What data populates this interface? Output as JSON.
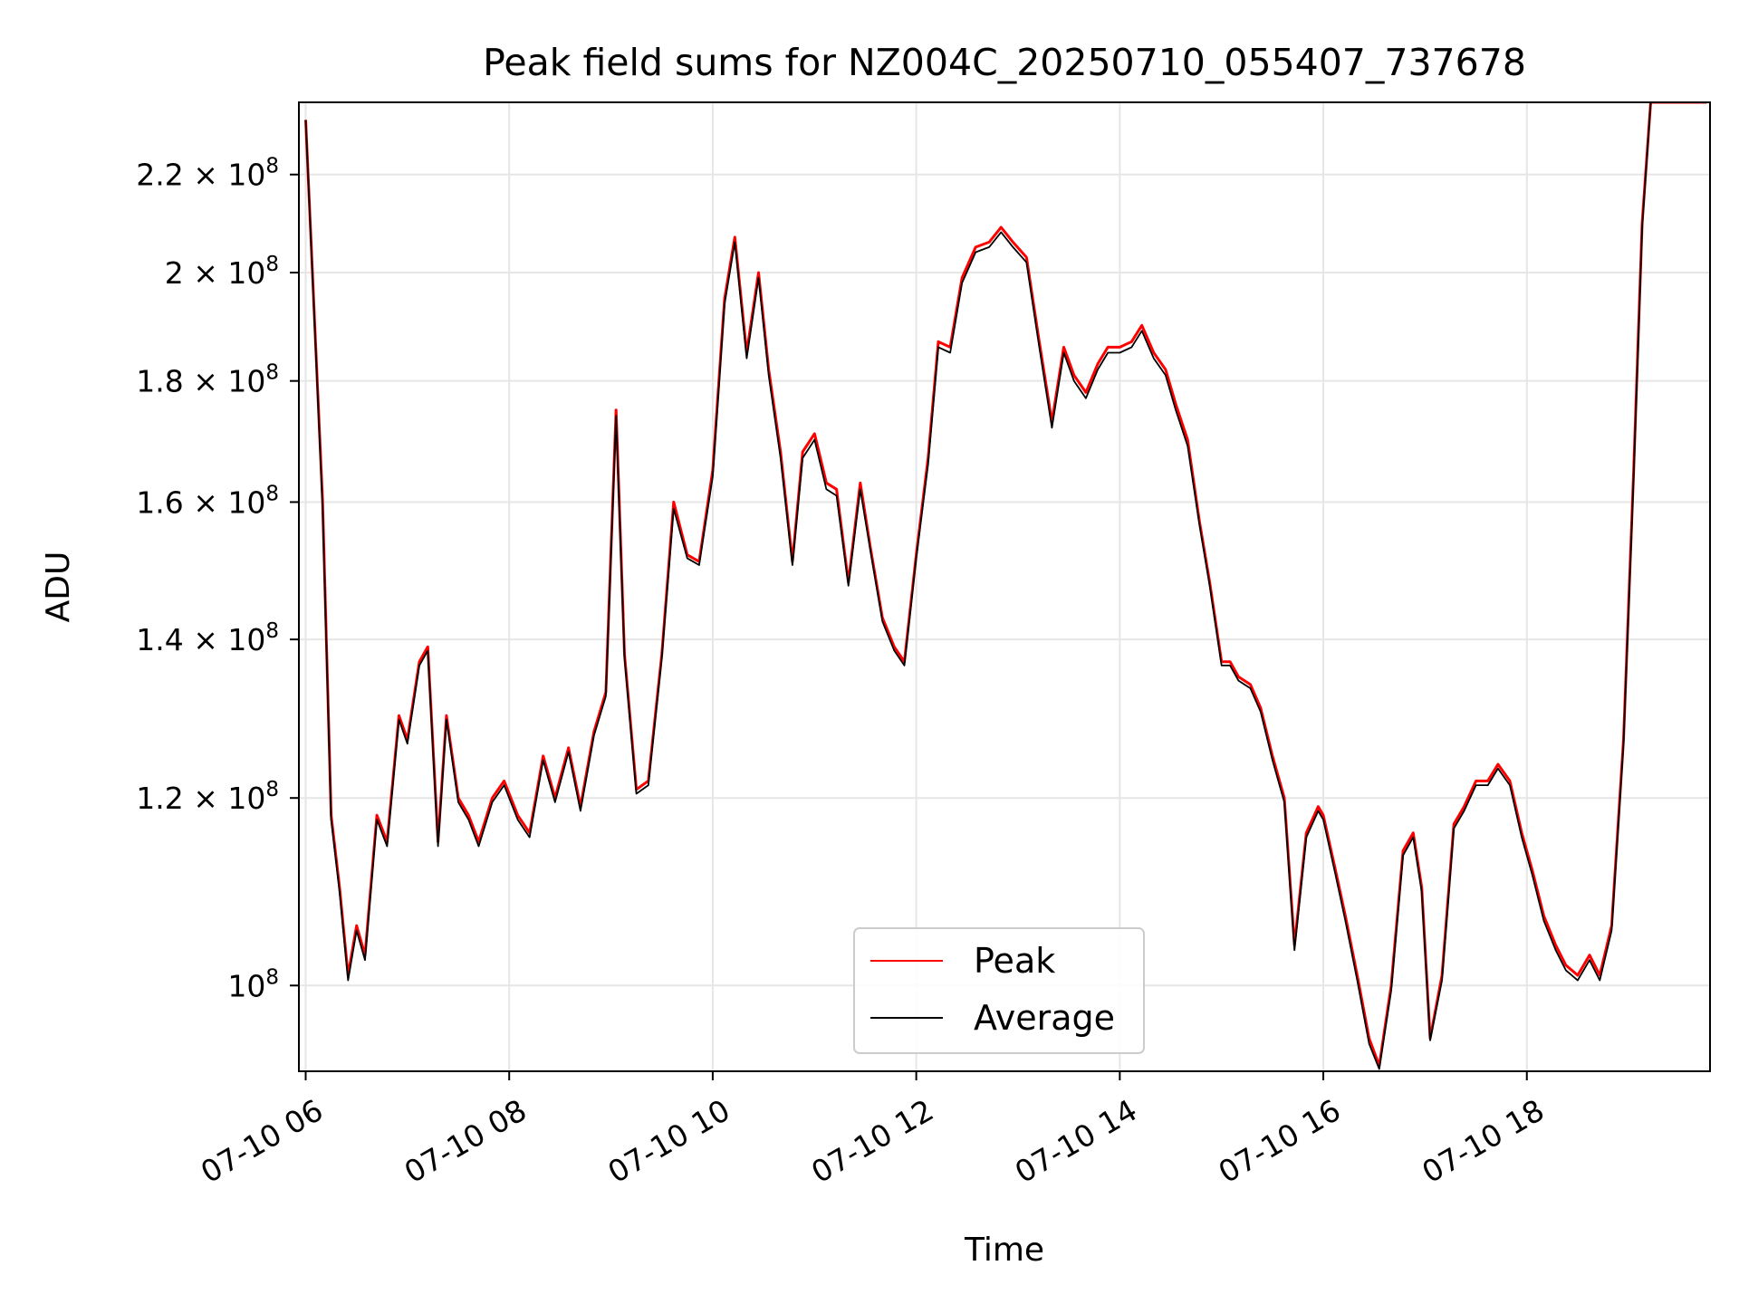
{
  "chart_data": {
    "type": "line",
    "title": "Peak field sums for NZ004C_20250710_055407_737678",
    "xlabel": "Time",
    "ylabel": "ADU",
    "yscale": "log",
    "xlim": [
      "2025-07-10 05:56",
      "2025-07-10 19:48"
    ],
    "ylim": [
      92000000,
      236000000
    ],
    "grid": true,
    "legend_position": "lower center",
    "x_ticks": [
      {
        "value": "2025-07-10 06:00",
        "label": "07-10 06"
      },
      {
        "value": "2025-07-10 08:00",
        "label": "07-10 08"
      },
      {
        "value": "2025-07-10 10:00",
        "label": "07-10 10"
      },
      {
        "value": "2025-07-10 12:00",
        "label": "07-10 12"
      },
      {
        "value": "2025-07-10 14:00",
        "label": "07-10 14"
      },
      {
        "value": "2025-07-10 16:00",
        "label": "07-10 16"
      },
      {
        "value": "2025-07-10 18:00",
        "label": "07-10 18"
      }
    ],
    "y_ticks": [
      {
        "value": 100000000,
        "label": "10^8"
      },
      {
        "value": 120000000,
        "label": "1.2 × 10^8"
      },
      {
        "value": 140000000,
        "label": "1.4 × 10^8"
      },
      {
        "value": 160000000,
        "label": "1.6 × 10^8"
      },
      {
        "value": 180000000,
        "label": "1.8 × 10^8"
      },
      {
        "value": 200000000,
        "label": "2 × 10^8"
      },
      {
        "value": 220000000,
        "label": "2.2 × 10^8"
      }
    ],
    "series": [
      {
        "name": "Peak",
        "color": "#ff0000",
        "x": [
          "2025-07-10 06:00",
          "2025-07-10 06:10",
          "2025-07-10 06:15",
          "2025-07-10 06:20",
          "2025-07-10 06:25",
          "2025-07-10 06:30",
          "2025-07-10 06:35",
          "2025-07-10 06:42",
          "2025-07-10 06:48",
          "2025-07-10 06:55",
          "2025-07-10 07:00",
          "2025-07-10 07:07",
          "2025-07-10 07:12",
          "2025-07-10 07:18",
          "2025-07-10 07:23",
          "2025-07-10 07:30",
          "2025-07-10 07:36",
          "2025-07-10 07:42",
          "2025-07-10 07:50",
          "2025-07-10 07:57",
          "2025-07-10 08:05",
          "2025-07-10 08:12",
          "2025-07-10 08:20",
          "2025-07-10 08:27",
          "2025-07-10 08:35",
          "2025-07-10 08:42",
          "2025-07-10 08:50",
          "2025-07-10 08:57",
          "2025-07-10 09:03",
          "2025-07-10 09:08",
          "2025-07-10 09:15",
          "2025-07-10 09:22",
          "2025-07-10 09:30",
          "2025-07-10 09:37",
          "2025-07-10 09:45",
          "2025-07-10 09:52",
          "2025-07-10 10:00",
          "2025-07-10 10:07",
          "2025-07-10 10:13",
          "2025-07-10 10:20",
          "2025-07-10 10:27",
          "2025-07-10 10:33",
          "2025-07-10 10:40",
          "2025-07-10 10:47",
          "2025-07-10 10:53",
          "2025-07-10 11:00",
          "2025-07-10 11:07",
          "2025-07-10 11:13",
          "2025-07-10 11:20",
          "2025-07-10 11:27",
          "2025-07-10 11:33",
          "2025-07-10 11:40",
          "2025-07-10 11:47",
          "2025-07-10 11:53",
          "2025-07-10 12:00",
          "2025-07-10 12:07",
          "2025-07-10 12:13",
          "2025-07-10 12:20",
          "2025-07-10 12:27",
          "2025-07-10 12:35",
          "2025-07-10 12:43",
          "2025-07-10 12:50",
          "2025-07-10 12:57",
          "2025-07-10 13:05",
          "2025-07-10 13:12",
          "2025-07-10 13:20",
          "2025-07-10 13:27",
          "2025-07-10 13:33",
          "2025-07-10 13:40",
          "2025-07-10 13:47",
          "2025-07-10 13:53",
          "2025-07-10 14:00",
          "2025-07-10 14:07",
          "2025-07-10 14:13",
          "2025-07-10 14:20",
          "2025-07-10 14:27",
          "2025-07-10 14:33",
          "2025-07-10 14:40",
          "2025-07-10 14:47",
          "2025-07-10 14:53",
          "2025-07-10 15:00",
          "2025-07-10 15:05",
          "2025-07-10 15:10",
          "2025-07-10 15:17",
          "2025-07-10 15:23",
          "2025-07-10 15:30",
          "2025-07-10 15:37",
          "2025-07-10 15:43",
          "2025-07-10 15:50",
          "2025-07-10 15:57",
          "2025-07-10 16:00",
          "2025-07-10 16:07",
          "2025-07-10 16:13",
          "2025-07-10 16:20",
          "2025-07-10 16:27",
          "2025-07-10 16:33",
          "2025-07-10 16:40",
          "2025-07-10 16:47",
          "2025-07-10 16:53",
          "2025-07-10 16:58",
          "2025-07-10 17:03",
          "2025-07-10 17:10",
          "2025-07-10 17:17",
          "2025-07-10 17:23",
          "2025-07-10 17:30",
          "2025-07-10 17:37",
          "2025-07-10 17:43",
          "2025-07-10 17:50",
          "2025-07-10 17:57",
          "2025-07-10 18:03",
          "2025-07-10 18:10",
          "2025-07-10 18:17",
          "2025-07-10 18:23",
          "2025-07-10 18:30",
          "2025-07-10 18:37",
          "2025-07-10 18:43",
          "2025-07-10 18:50",
          "2025-07-10 18:57",
          "2025-07-10 19:03",
          "2025-07-10 19:08",
          "2025-07-10 19:13",
          "2025-07-10 19:20",
          "2025-07-10 19:27",
          "2025-07-10 19:33",
          "2025-07-10 19:40",
          "2025-07-10 19:46"
        ],
        "values": [
          232000000,
          160000000,
          118000000,
          110000000,
          101000000,
          106000000,
          103000000,
          118000000,
          115000000,
          130000000,
          127000000,
          137000000,
          139000000,
          115000000,
          130000000,
          120000000,
          118000000,
          115000000,
          120000000,
          122000000,
          118000000,
          116000000,
          125000000,
          120000000,
          126000000,
          119000000,
          128000000,
          133000000,
          175000000,
          138000000,
          121000000,
          122000000,
          138000000,
          160000000,
          152000000,
          151000000,
          165000000,
          195000000,
          207000000,
          185000000,
          200000000,
          182000000,
          168000000,
          151000000,
          168000000,
          171000000,
          163000000,
          162000000,
          148000000,
          163000000,
          153000000,
          143000000,
          139000000,
          137000000,
          152000000,
          167000000,
          187000000,
          186000000,
          199000000,
          205000000,
          206000000,
          209000000,
          206000000,
          203000000,
          188000000,
          173000000,
          186000000,
          181000000,
          178000000,
          183000000,
          186000000,
          186000000,
          187000000,
          190000000,
          185000000,
          182000000,
          176000000,
          170000000,
          157000000,
          148000000,
          137000000,
          137000000,
          135000000,
          134000000,
          131000000,
          125000000,
          120000000,
          104000000,
          116000000,
          119000000,
          118000000,
          112000000,
          107000000,
          101000000,
          95000000,
          92500000,
          100000000,
          114000000,
          116000000,
          110000000,
          95000000,
          101000000,
          117000000,
          119000000,
          122000000,
          122000000,
          124000000,
          122000000,
          116000000,
          112000000,
          107000000,
          104000000,
          102000000,
          101000000,
          103000000,
          101000000,
          106000000,
          127000000,
          165000000,
          210000000,
          236000000,
          236000000,
          236000000,
          236000000,
          236000000,
          236000000
        ]
      },
      {
        "name": "Average",
        "color": "#000000",
        "x": [
          "2025-07-10 06:00",
          "2025-07-10 06:10",
          "2025-07-10 06:15",
          "2025-07-10 06:20",
          "2025-07-10 06:25",
          "2025-07-10 06:30",
          "2025-07-10 06:35",
          "2025-07-10 06:42",
          "2025-07-10 06:48",
          "2025-07-10 06:55",
          "2025-07-10 07:00",
          "2025-07-10 07:07",
          "2025-07-10 07:12",
          "2025-07-10 07:18",
          "2025-07-10 07:23",
          "2025-07-10 07:30",
          "2025-07-10 07:36",
          "2025-07-10 07:42",
          "2025-07-10 07:50",
          "2025-07-10 07:57",
          "2025-07-10 08:05",
          "2025-07-10 08:12",
          "2025-07-10 08:20",
          "2025-07-10 08:27",
          "2025-07-10 08:35",
          "2025-07-10 08:42",
          "2025-07-10 08:50",
          "2025-07-10 08:57",
          "2025-07-10 09:03",
          "2025-07-10 09:08",
          "2025-07-10 09:15",
          "2025-07-10 09:22",
          "2025-07-10 09:30",
          "2025-07-10 09:37",
          "2025-07-10 09:45",
          "2025-07-10 09:52",
          "2025-07-10 10:00",
          "2025-07-10 10:07",
          "2025-07-10 10:13",
          "2025-07-10 10:20",
          "2025-07-10 10:27",
          "2025-07-10 10:33",
          "2025-07-10 10:40",
          "2025-07-10 10:47",
          "2025-07-10 10:53",
          "2025-07-10 11:00",
          "2025-07-10 11:07",
          "2025-07-10 11:13",
          "2025-07-10 11:20",
          "2025-07-10 11:27",
          "2025-07-10 11:33",
          "2025-07-10 11:40",
          "2025-07-10 11:47",
          "2025-07-10 11:53",
          "2025-07-10 12:00",
          "2025-07-10 12:07",
          "2025-07-10 12:13",
          "2025-07-10 12:20",
          "2025-07-10 12:27",
          "2025-07-10 12:35",
          "2025-07-10 12:43",
          "2025-07-10 12:50",
          "2025-07-10 12:57",
          "2025-07-10 13:05",
          "2025-07-10 13:12",
          "2025-07-10 13:20",
          "2025-07-10 13:27",
          "2025-07-10 13:33",
          "2025-07-10 13:40",
          "2025-07-10 13:47",
          "2025-07-10 13:53",
          "2025-07-10 14:00",
          "2025-07-10 14:07",
          "2025-07-10 14:13",
          "2025-07-10 14:20",
          "2025-07-10 14:27",
          "2025-07-10 14:33",
          "2025-07-10 14:40",
          "2025-07-10 14:47",
          "2025-07-10 14:53",
          "2025-07-10 15:00",
          "2025-07-10 15:05",
          "2025-07-10 15:10",
          "2025-07-10 15:17",
          "2025-07-10 15:23",
          "2025-07-10 15:30",
          "2025-07-10 15:37",
          "2025-07-10 15:43",
          "2025-07-10 15:50",
          "2025-07-10 15:57",
          "2025-07-10 16:00",
          "2025-07-10 16:07",
          "2025-07-10 16:13",
          "2025-07-10 16:20",
          "2025-07-10 16:27",
          "2025-07-10 16:33",
          "2025-07-10 16:40",
          "2025-07-10 16:47",
          "2025-07-10 16:53",
          "2025-07-10 16:58",
          "2025-07-10 17:03",
          "2025-07-10 17:10",
          "2025-07-10 17:17",
          "2025-07-10 17:23",
          "2025-07-10 17:30",
          "2025-07-10 17:37",
          "2025-07-10 17:43",
          "2025-07-10 17:50",
          "2025-07-10 17:57",
          "2025-07-10 18:03",
          "2025-07-10 18:10",
          "2025-07-10 18:17",
          "2025-07-10 18:23",
          "2025-07-10 18:30",
          "2025-07-10 18:37",
          "2025-07-10 18:43",
          "2025-07-10 18:50",
          "2025-07-10 18:57",
          "2025-07-10 19:03",
          "2025-07-10 19:08",
          "2025-07-10 19:13",
          "2025-07-10 19:20",
          "2025-07-10 19:27",
          "2025-07-10 19:33",
          "2025-07-10 19:40",
          "2025-07-10 19:46"
        ],
        "values": [
          232000000,
          159000000,
          117500000,
          109500000,
          100500000,
          105500000,
          102500000,
          117500000,
          114500000,
          129500000,
          126500000,
          136500000,
          138500000,
          114500000,
          129500000,
          119500000,
          117500000,
          114500000,
          119500000,
          121500000,
          117500000,
          115500000,
          124500000,
          119500000,
          125500000,
          118500000,
          127500000,
          132500000,
          174000000,
          137500000,
          120500000,
          121500000,
          137500000,
          159000000,
          151500000,
          150500000,
          164000000,
          194000000,
          206000000,
          184000000,
          199000000,
          181000000,
          167000000,
          150500000,
          167000000,
          170000000,
          162000000,
          161000000,
          147500000,
          162000000,
          152500000,
          142500000,
          138500000,
          136500000,
          151500000,
          166000000,
          186000000,
          185000000,
          198000000,
          204000000,
          205000000,
          208000000,
          205000000,
          202000000,
          187000000,
          172000000,
          185000000,
          180000000,
          177000000,
          182000000,
          185000000,
          185000000,
          186000000,
          189000000,
          184000000,
          181000000,
          175000000,
          169000000,
          156500000,
          147500000,
          136500000,
          136500000,
          134500000,
          133500000,
          130500000,
          124500000,
          119500000,
          103500000,
          115500000,
          118500000,
          117500000,
          111500000,
          106500000,
          100500000,
          94500000,
          92200000,
          99500000,
          113500000,
          115500000,
          109500000,
          94800000,
          100500000,
          116500000,
          118500000,
          121500000,
          121500000,
          123500000,
          121500000,
          115500000,
          111500000,
          106500000,
          103500000,
          101500000,
          100500000,
          102500000,
          100500000,
          105500000,
          126500000,
          164000000,
          209000000,
          236000000,
          236000000,
          236000000,
          236000000,
          236000000,
          236000000
        ]
      }
    ]
  }
}
